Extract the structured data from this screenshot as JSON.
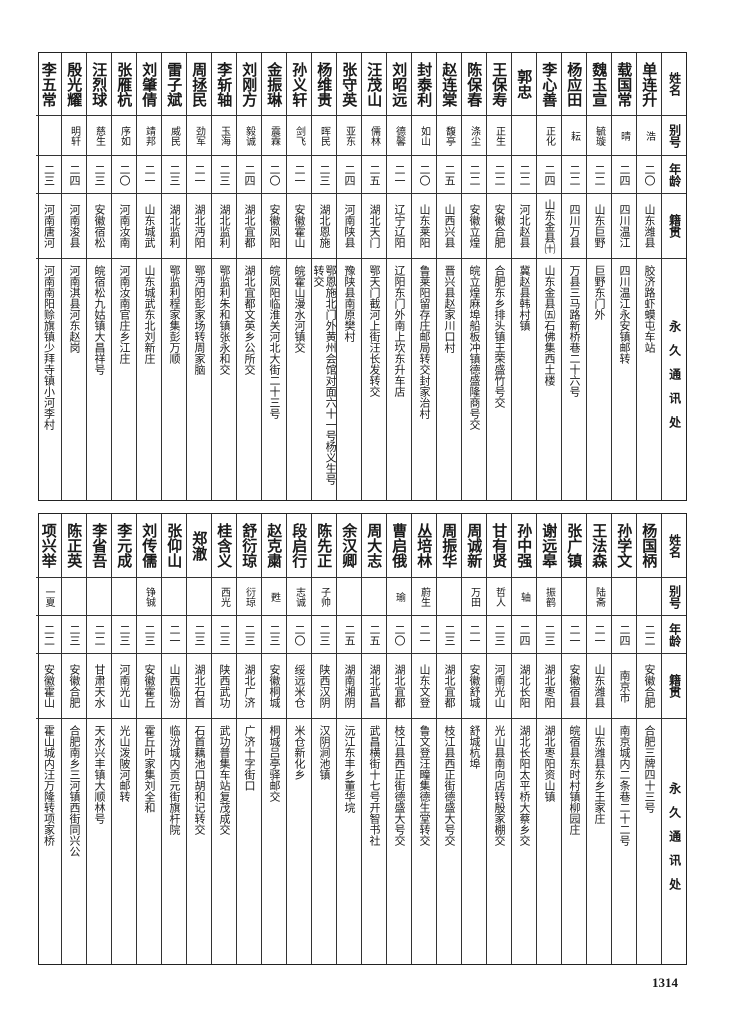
{
  "header": {
    "name": "姓名",
    "alias": "别号",
    "age": "年龄",
    "origin": "籍贯",
    "address": "永久通讯处"
  },
  "top_table": [
    {
      "name": "单连升",
      "alias": "浩",
      "age": "二〇",
      "origin": "山东潍县",
      "address": "胶济路虾蟆屯车站"
    },
    {
      "name": "载国常",
      "alias": "晴",
      "age": "二四",
      "origin": "四川温江",
      "address": "四川温江永安镇邮转"
    },
    {
      "name": "魏玉宣",
      "alias": "毓璇",
      "age": "二二",
      "origin": "山东巨野",
      "address": "巨野东门外"
    },
    {
      "name": "杨应田",
      "alias": "耘",
      "age": "二二",
      "origin": "四川万县",
      "address": "万县三马路新桥巷二十六号"
    },
    {
      "name": "李心善",
      "alias": "正化",
      "age": "二四",
      "origin": "山东金县㈩",
      "address": "山东金县㈤石佛集西土楼"
    },
    {
      "name": "郭忠",
      "alias": "",
      "age": "二二",
      "origin": "河北赵县",
      "address": "冀赵县韩村镇"
    },
    {
      "name": "王保寿",
      "alias": "正生",
      "age": "二二",
      "origin": "安徽合肥",
      "address": "合肥东乡排头镇王荣盛竹号交"
    },
    {
      "name": "陈保春",
      "alias": "涤尘",
      "age": "二二",
      "origin": "安徽立煌",
      "address": "皖立煌麻埠船板冲镇德盛隆商号交"
    },
    {
      "name": "赵连棠",
      "alias": "馥亭",
      "age": "二五",
      "origin": "山西兴县",
      "address": "晋兴县赵家川口村"
    },
    {
      "name": "封泰利",
      "alias": "如山",
      "age": "二〇",
      "origin": "山东莱阳",
      "address": "鲁莱阳留存庄邮局转交封家治村"
    },
    {
      "name": "刘昭远",
      "alias": "德馨",
      "age": "二一",
      "origin": "辽宁辽阳",
      "address": "辽阳东门外南上坎东升车店"
    },
    {
      "name": "汪茂山",
      "alias": "儒林",
      "age": "二五",
      "origin": "湖北天门",
      "address": "鄂天门截河上街汪长发转交"
    },
    {
      "name": "张守英",
      "alias": "亚东",
      "age": "二四",
      "origin": "河南陕县",
      "address": "豫陕县南原樊村"
    },
    {
      "name": "杨维贵",
      "alias": "晖民",
      "age": "二三",
      "origin": "湖北恩施",
      "address": "鄂恩施北门外黄州会馆对面六十一号杨义生号转交"
    },
    {
      "name": "孙义轩",
      "alias": "剑飞",
      "age": "二一",
      "origin": "安徽霍山",
      "address": "皖霍山漫水河镇交"
    },
    {
      "name": "金振琳",
      "alias": "震霖",
      "age": "二〇",
      "origin": "安徽凤阳",
      "address": "皖凤阳临淮关河北大街二十三号"
    },
    {
      "name": "刘刚方",
      "alias": "毅诚",
      "age": "二四",
      "origin": "湖北宜都",
      "address": "湖北宜都文英乡公所交"
    },
    {
      "name": "李斩轴",
      "alias": "玉海",
      "age": "二三",
      "origin": "湖北监利",
      "address": "鄂监利朱和镇张永和交"
    },
    {
      "name": "周拯民",
      "alias": "劲军",
      "age": "二一",
      "origin": "湖北沔阳",
      "address": "鄂沔阳彭家场转周家脑"
    },
    {
      "name": "雷子斌",
      "alias": "威民",
      "age": "二三",
      "origin": "湖北监利",
      "address": "鄂监利程家集彭万顺"
    },
    {
      "name": "刘肇倩",
      "alias": "靖邦",
      "age": "二一",
      "origin": "山东城武",
      "address": "山东城武东北刘新庄"
    },
    {
      "name": "张雁杭",
      "alias": "序如",
      "age": "二〇",
      "origin": "河南汝南",
      "address": "河南汝南官庄乡江庄"
    },
    {
      "name": "汪烈球",
      "alias": "慈生",
      "age": "二三",
      "origin": "安徽宿松",
      "address": "皖宿松九姑镇大昌祥号"
    },
    {
      "name": "殷光耀",
      "alias": "明轩",
      "age": "二四",
      "origin": "河南浚县",
      "address": "河南淇县河东赵岗"
    },
    {
      "name": "李五常",
      "alias": "",
      "age": "二三",
      "origin": "河南唐河",
      "address": "河南南阳赊旗镇少拜寺镇小河李村"
    }
  ],
  "bottom_table": [
    {
      "name": "杨国柄",
      "alias": "",
      "age": "二二",
      "origin": "安徽合肥",
      "address": "合肥三牌四十三号"
    },
    {
      "name": "孙学文",
      "alias": "",
      "age": "二四",
      "origin": "南京市",
      "address": "南京城内二条巷二十二号"
    },
    {
      "name": "王法森",
      "alias": "陆斋",
      "age": "二一",
      "origin": "山东潍县",
      "address": "山东潍县东乡王家庄"
    },
    {
      "name": "张广镇",
      "alias": "",
      "age": "二一",
      "origin": "安徽宿县",
      "address": "皖宿县东时村镇柳园庄"
    },
    {
      "name": "谢远皋",
      "alias": "振鹤",
      "age": "二三",
      "origin": "湖北枣阳",
      "address": "湖北枣阳资山镇"
    },
    {
      "name": "孙中强",
      "alias": "轴",
      "age": "二四",
      "origin": "湖北长阳",
      "address": "湖北长阳太平桥大蔡乡交"
    },
    {
      "name": "甘有贤",
      "alias": "哲人",
      "age": "二三",
      "origin": "河南光山",
      "address": "光山县南向店转殷家棚交"
    },
    {
      "name": "周诚新",
      "alias": "万田",
      "age": "二一",
      "origin": "安徽舒城",
      "address": "舒城杭埠"
    },
    {
      "name": "周振华",
      "alias": "",
      "age": "二三",
      "origin": "湖北宜都",
      "address": "枝江县西正街德盛大号交"
    },
    {
      "name": "丛培林",
      "alias": "蔚生",
      "age": "二一",
      "origin": "山东文登",
      "address": "鲁文登汪疃集德生堂转交"
    },
    {
      "name": "曹启俄",
      "alias": "瑜",
      "age": "二〇",
      "origin": "湖北宜都",
      "address": "枝江县西正街德盛大号交"
    },
    {
      "name": "周大志",
      "alias": "",
      "age": "二五",
      "origin": "湖北武昌",
      "address": "武昌横街十七号开智书社"
    },
    {
      "name": "余汉卿",
      "alias": "",
      "age": "二五",
      "origin": "湖南湘阴",
      "address": "沅江东丰乡董华垸"
    },
    {
      "name": "陈先正",
      "alias": "子帅",
      "age": "二三",
      "origin": "陕西汉阴",
      "address": "汉阴涧池镇"
    },
    {
      "name": "段启行",
      "alias": "志诚",
      "age": "二〇",
      "origin": "绥远米仓",
      "address": "米仓新化乡"
    },
    {
      "name": "赵克粛",
      "alias": "甦",
      "age": "二三",
      "origin": "安徽桐城",
      "address": "桐城吕亭驿邮交"
    },
    {
      "name": "舒衍琼",
      "alias": "衍琼",
      "age": "二三",
      "origin": "湖北广济",
      "address": "广济十字街口"
    },
    {
      "name": "桂含义",
      "alias": "西光",
      "age": "二三",
      "origin": "陕西武功",
      "address": "武功普集车站复茂成交"
    },
    {
      "name": "郑澈",
      "alias": "",
      "age": "二三",
      "origin": "湖北石首",
      "address": "石首藕池口胡和记转交"
    },
    {
      "name": "张仰山",
      "alias": "",
      "age": "二一",
      "origin": "山西临汾",
      "address": "临汾城内贡元街旗杆院"
    },
    {
      "name": "刘传儒",
      "alias": "铮铖",
      "age": "二三",
      "origin": "安徽霍丘",
      "address": "霍丘叶家集刘全和"
    },
    {
      "name": "李元成",
      "alias": "",
      "age": "二三",
      "origin": "河南光山",
      "address": "光山泼陂河邮转"
    },
    {
      "name": "李省吾",
      "alias": "",
      "age": "二二",
      "origin": "甘肃天水",
      "address": "天水兴丰镇大顺林号"
    },
    {
      "name": "陈正英",
      "alias": "",
      "age": "二三",
      "origin": "安徽合肥",
      "address": "合肥南乡三河镇西街同兴公"
    },
    {
      "name": "项兴举",
      "alias": "一夏",
      "age": "二二",
      "origin": "安徽霍山",
      "address": "霍山城内汪万隆转项家桥"
    }
  ],
  "page_number": "1314"
}
